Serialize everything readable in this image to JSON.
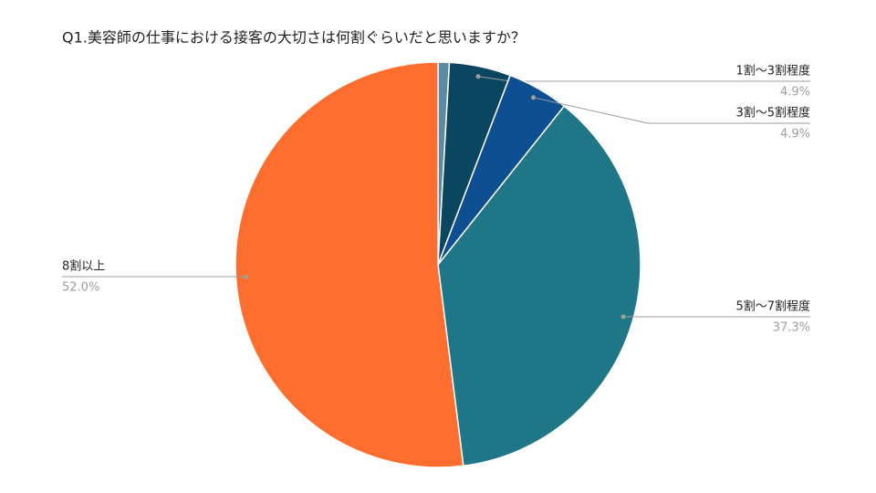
{
  "chart_data": {
    "type": "pie",
    "title": "Q1.美容師の仕事における接客の大切さは何割ぐらいだと思いますか？",
    "categories": [
      null,
      "1割〜3割程度",
      "3割〜5割程度",
      "5割〜7割程度",
      "8割以上"
    ],
    "values": [
      0.9,
      4.9,
      4.9,
      37.3,
      52.0
    ],
    "value_labels": [
      null,
      "4.9%",
      "4.9%",
      "37.3%",
      "52.0%"
    ],
    "colors": [
      "#5b8aa5",
      "#0b4660",
      "#0d4f91",
      "#1f7686",
      "#ff6d2f"
    ]
  }
}
